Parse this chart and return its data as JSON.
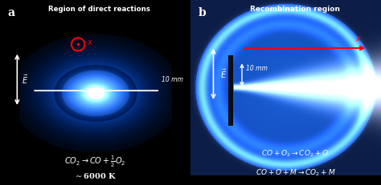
{
  "figsize": [
    4.74,
    2.31
  ],
  "dpi": 100,
  "panel_a": {
    "label": "a",
    "title": "Region of direct reactions",
    "bg_color": "#03080f",
    "scale_text": "10 mm",
    "E_field_label": "$\\vec{E}$",
    "x_label": "$x$",
    "eq_line1": "$CO_2 \\rightarrow CO + \\frac{1}{2} O_2$",
    "eq_line2": "$\\sim$6000 K"
  },
  "panel_b": {
    "label": "b",
    "title": "Recombination region",
    "bg_color": "#0a1530",
    "scale_text": "10 mm",
    "E_field_label": "$\\vec{E}$",
    "x_label": "$x$",
    "eq_line1": "$CO + O_2 \\rightarrow CO_2 + O$",
    "eq_line2": "$CO + O + M \\rightarrow CO_2 + M$"
  }
}
